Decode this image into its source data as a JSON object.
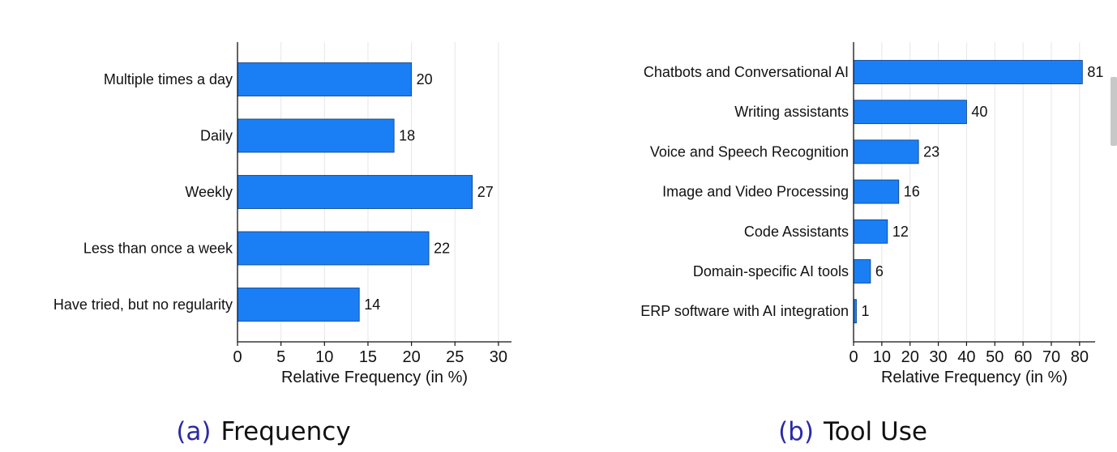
{
  "chart_data": [
    {
      "type": "bar",
      "orientation": "horizontal",
      "caption_label": "(a)",
      "caption_title": "Frequency",
      "xlabel": "Relative Frequency (in %)",
      "ylabel": "",
      "categories": [
        "Multiple times a day",
        "Daily",
        "Weekly",
        "Less than once a week",
        "Have tried, but no regularity"
      ],
      "values": [
        20,
        18,
        27,
        22,
        14
      ],
      "value_labels": [
        "20",
        "18",
        "27",
        "22",
        "14"
      ],
      "xticks": [
        0,
        5,
        10,
        15,
        20,
        25,
        30
      ],
      "xtick_labels": [
        "0",
        "5",
        "10",
        "15",
        "20",
        "25",
        "30"
      ],
      "xlim": [
        0,
        31.5
      ],
      "grid": "vertical",
      "bar_color": "#1a7ff5",
      "grid_color": "#e6e6e6"
    },
    {
      "type": "bar",
      "orientation": "horizontal",
      "caption_label": "(b)",
      "caption_title": "Tool Use",
      "xlabel": "Relative Frequency (in %)",
      "ylabel": "",
      "categories": [
        "Chatbots and Conversational AI",
        "Writing assistants",
        "Voice and Speech Recognition",
        "Image and Video Processing",
        "Code Assistants",
        "Domain-specific AI tools",
        "ERP software with AI integration"
      ],
      "values": [
        81,
        40,
        23,
        16,
        12,
        6,
        1
      ],
      "value_labels": [
        "81",
        "40",
        "23",
        "16",
        "12",
        "6",
        "1"
      ],
      "xticks": [
        0,
        10,
        20,
        30,
        40,
        50,
        60,
        70,
        80
      ],
      "xtick_labels": [
        "0",
        "10",
        "20",
        "30",
        "40",
        "50",
        "60",
        "70",
        "80"
      ],
      "xlim": [
        0,
        85.5
      ],
      "grid": "vertical",
      "bar_color": "#1a7ff5",
      "grid_color": "#e6e6e6"
    }
  ]
}
